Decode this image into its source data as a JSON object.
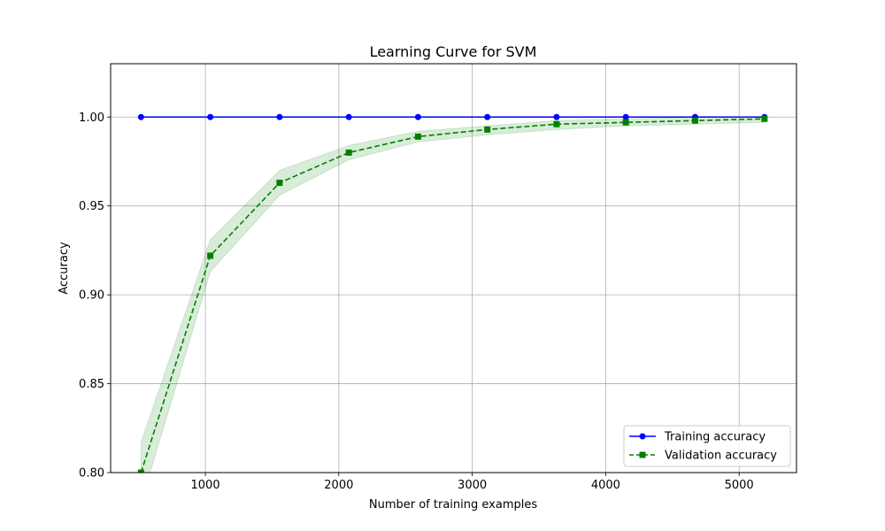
{
  "chart_data": {
    "type": "line",
    "title": "Learning Curve for SVM",
    "xlabel": "Number of training examples",
    "ylabel": "Accuracy",
    "xlim": [
      290,
      5430
    ],
    "ylim": [
      0.8,
      1.03
    ],
    "x_ticks": [
      1000,
      2000,
      3000,
      4000,
      5000
    ],
    "y_ticks": [
      0.8,
      0.85,
      0.9,
      0.95,
      1.0
    ],
    "x_tick_labels": [
      "1000",
      "2000",
      "3000",
      "4000",
      "5000"
    ],
    "y_tick_labels": [
      "0.80",
      "0.85",
      "0.90",
      "0.95",
      "1.00"
    ],
    "grid": true,
    "legend_position": "lower-right",
    "x": [
      518,
      1037,
      1556,
      2075,
      2594,
      3113,
      3632,
      4151,
      4670,
      5190
    ],
    "series": [
      {
        "name": "Training accuracy",
        "values": [
          1.0,
          1.0,
          1.0,
          1.0,
          1.0,
          1.0,
          1.0,
          1.0,
          1.0,
          1.0
        ],
        "color": "#0000ff",
        "marker": "circle",
        "linestyle": "solid"
      },
      {
        "name": "Validation accuracy",
        "values": [
          0.8,
          0.922,
          0.963,
          0.98,
          0.989,
          0.993,
          0.996,
          0.997,
          0.998,
          0.999
        ],
        "band_upper": [
          0.817,
          0.931,
          0.97,
          0.984,
          0.992,
          0.995,
          0.998,
          0.999,
          1.0,
          1.0
        ],
        "band_lower": [
          0.783,
          0.913,
          0.956,
          0.976,
          0.986,
          0.99,
          0.993,
          0.995,
          0.996,
          0.997
        ],
        "color": "#008000",
        "band_color": "#008000",
        "marker": "square",
        "linestyle": "dashed"
      }
    ]
  }
}
